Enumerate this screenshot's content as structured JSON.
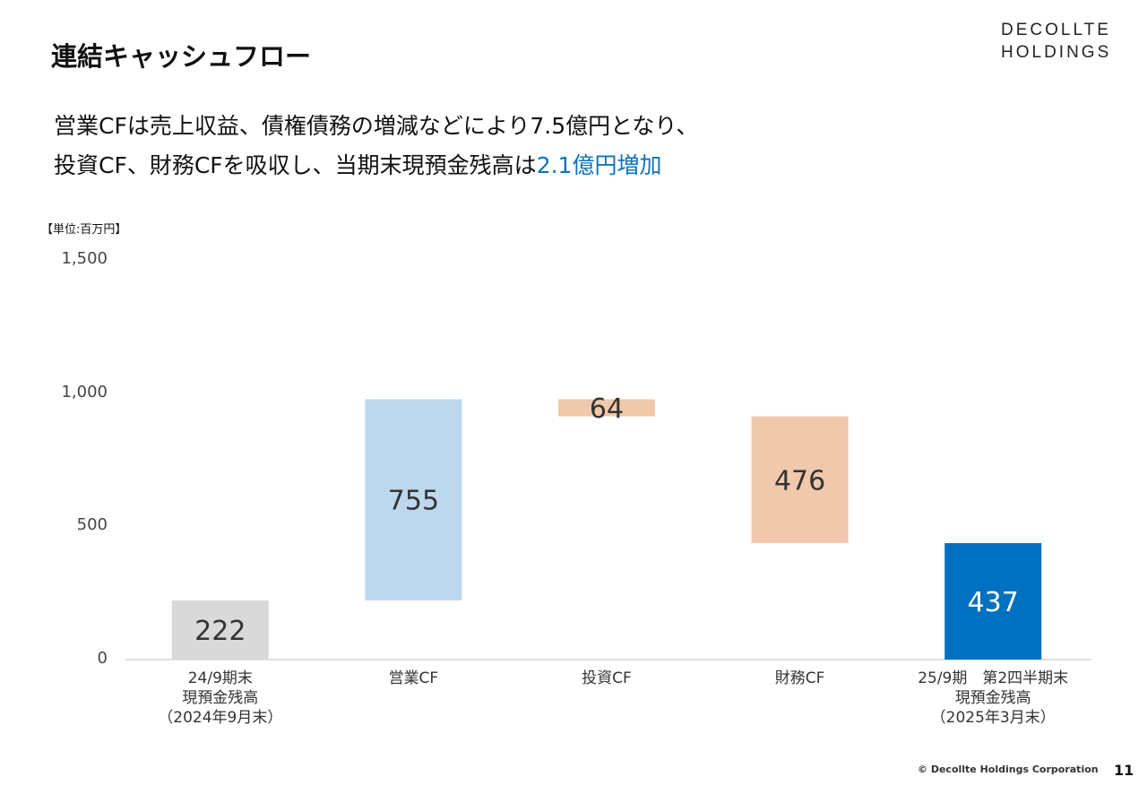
{
  "page": {
    "title": "連結キャッシュフロー",
    "logo_line1": "DECOLLTE",
    "logo_line2": "HOLDINGS",
    "headline_line1": "営業CFは売上収益、債権債務の増減などにより7.5億円となり、",
    "headline_line2_prefix": "投資CF、財務CFを吸収し、当期末現預金残高は",
    "headline_line2_highlight": "2.1億円増加",
    "footer_copyright": "© Decollte Holdings Corporation",
    "page_number": "11",
    "accent_color": "#0f73b8"
  },
  "chart_data": {
    "type": "bar",
    "subtype": "waterfall",
    "unit_label": "【単位:百万円】",
    "ylim": [
      0,
      1500
    ],
    "yticks": [
      0,
      500,
      1000,
      1500
    ],
    "ytick_labels": [
      "0",
      "500",
      "1,000",
      "1,500"
    ],
    "grid": false,
    "categories": [
      [
        "24/9期末",
        "現預金残高",
        "（2024年9月末）"
      ],
      [
        "営業CF"
      ],
      [
        "投資CF"
      ],
      [
        "財務CF"
      ],
      [
        "25/9期　第2四半期末",
        "現預金残高",
        "（2025年3月末）"
      ]
    ],
    "bars": [
      {
        "label": "222",
        "base": 0,
        "top": 222,
        "color": "#d9d9d9",
        "text_color": "#333333"
      },
      {
        "label": "755",
        "base": 222,
        "top": 977,
        "color": "#bdd7ee",
        "text_color": "#333333"
      },
      {
        "label": "64",
        "base": 913,
        "top": 977,
        "color": "#f0c8ab",
        "text_color": "#333333"
      },
      {
        "label": "476",
        "base": 437,
        "top": 913,
        "color": "#f0c8ab",
        "text_color": "#333333"
      },
      {
        "label": "437",
        "base": 0,
        "top": 437,
        "color": "#0070c0",
        "text_color": "#ffffff"
      }
    ]
  }
}
